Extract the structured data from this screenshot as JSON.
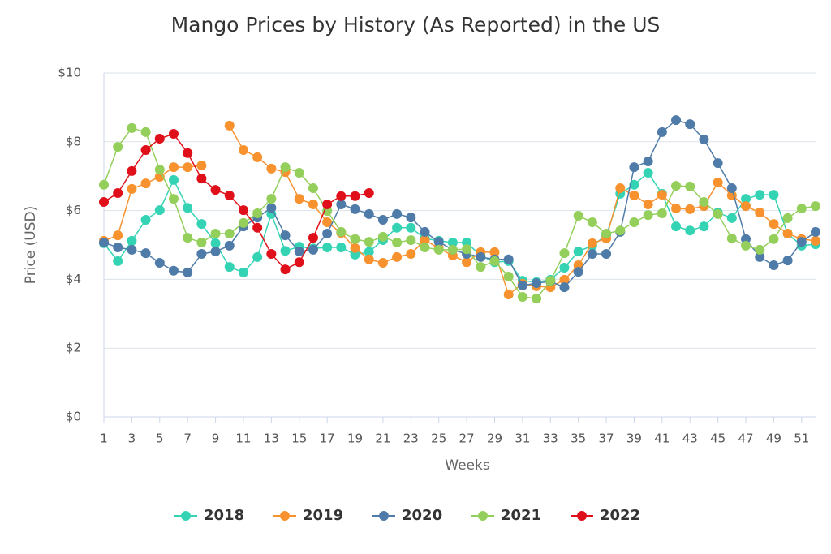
{
  "chart_data": {
    "type": "line",
    "title": "Mango Prices by History (As Reported) in the US",
    "x_label": "Weeks",
    "y_label": "Price (USD)",
    "x": [
      1,
      2,
      3,
      4,
      5,
      6,
      7,
      8,
      9,
      10,
      11,
      12,
      13,
      14,
      15,
      16,
      17,
      18,
      19,
      20,
      21,
      22,
      23,
      24,
      25,
      26,
      27,
      28,
      29,
      30,
      31,
      32,
      33,
      34,
      35,
      36,
      37,
      38,
      39,
      40,
      41,
      42,
      43,
      44,
      45,
      46,
      47,
      48,
      49,
      50,
      51,
      52
    ],
    "xlim": [
      1,
      52
    ],
    "xticks": [
      1,
      3,
      5,
      7,
      9,
      11,
      13,
      15,
      17,
      19,
      21,
      23,
      25,
      27,
      29,
      31,
      33,
      35,
      37,
      39,
      41,
      43,
      45,
      47,
      49,
      51
    ],
    "ylim": [
      0,
      10
    ],
    "yticks": [
      {
        "value": 0,
        "label": "$0"
      },
      {
        "value": 2,
        "label": "$2"
      },
      {
        "value": 4,
        "label": "$4"
      },
      {
        "value": 6,
        "label": "$6"
      },
      {
        "value": 8,
        "label": "$8"
      },
      {
        "value": 10,
        "label": "$10"
      }
    ],
    "grid": true,
    "legend": "bottom",
    "series": [
      {
        "name": "2018",
        "color": "#34d3b4",
        "values": [
          5.05,
          4.53,
          5.12,
          5.73,
          6.01,
          6.89,
          6.08,
          5.61,
          5.05,
          4.36,
          4.2,
          4.65,
          5.9,
          4.83,
          4.95,
          4.9,
          4.93,
          4.93,
          4.72,
          4.8,
          5.14,
          5.5,
          5.5,
          5.19,
          5.12,
          5.07,
          5.07,
          4.69,
          4.5,
          4.53,
          3.96,
          3.92,
          3.99,
          4.34,
          4.81,
          4.98,
          5.28,
          6.49,
          6.75,
          7.1,
          6.49,
          5.54,
          5.42,
          5.54,
          5.94,
          5.78,
          6.34,
          6.46,
          6.46,
          5.33,
          4.98,
          5.02
        ]
      },
      {
        "name": "2019",
        "color": "#f7922f",
        "values": [
          5.12,
          5.28,
          6.63,
          6.79,
          6.98,
          7.26,
          7.26,
          7.31,
          null,
          8.47,
          7.76,
          7.55,
          7.22,
          7.12,
          6.34,
          6.18,
          5.66,
          5.35,
          4.91,
          4.58,
          4.48,
          4.65,
          4.74,
          5.14,
          4.91,
          4.69,
          4.5,
          4.79,
          4.79,
          3.56,
          3.87,
          3.8,
          3.77,
          3.99,
          4.41,
          5.05,
          5.19,
          6.65,
          6.44,
          6.18,
          6.46,
          6.06,
          6.04,
          6.13,
          6.82,
          6.44,
          6.13,
          5.94,
          5.61,
          5.33,
          5.17,
          5.12
        ]
      },
      {
        "name": "2020",
        "color": "#4f7ba8",
        "values": [
          5.07,
          4.93,
          4.86,
          4.76,
          4.48,
          4.25,
          4.2,
          4.74,
          4.81,
          4.98,
          5.54,
          5.8,
          6.08,
          5.28,
          4.81,
          4.86,
          5.33,
          6.18,
          6.04,
          5.9,
          5.73,
          5.9,
          5.8,
          5.38,
          5.09,
          4.86,
          4.74,
          4.65,
          4.58,
          4.58,
          3.82,
          3.89,
          3.94,
          3.77,
          4.22,
          4.74,
          4.74,
          5.38,
          7.26,
          7.43,
          8.28,
          8.63,
          8.51,
          8.07,
          7.38,
          6.65,
          5.17,
          4.65,
          4.41,
          4.55,
          5.09,
          5.38
        ]
      },
      {
        "name": "2021",
        "color": "#93cf5a",
        "values": [
          6.75,
          7.85,
          8.4,
          8.28,
          7.19,
          6.34,
          5.21,
          5.07,
          5.33,
          5.33,
          5.64,
          5.92,
          6.34,
          7.26,
          7.1,
          6.65,
          5.99,
          5.38,
          5.17,
          5.09,
          5.24,
          5.07,
          5.14,
          4.93,
          4.86,
          4.86,
          4.88,
          4.36,
          4.53,
          4.08,
          3.49,
          3.44,
          3.96,
          4.76,
          5.85,
          5.66,
          5.33,
          5.42,
          5.66,
          5.87,
          5.92,
          6.72,
          6.7,
          6.25,
          5.9,
          5.19,
          4.98,
          4.86,
          5.17,
          5.78,
          6.06,
          6.13
        ]
      },
      {
        "name": "2022",
        "color": "#e0101a",
        "values": [
          6.25,
          6.51,
          7.15,
          7.76,
          8.09,
          8.23,
          7.67,
          6.93,
          6.6,
          6.44,
          6.01,
          5.5,
          4.74,
          4.29,
          4.5,
          5.21,
          6.18,
          6.42,
          6.42,
          6.51,
          null,
          null,
          null,
          null,
          null,
          null,
          null,
          null,
          null,
          null,
          null,
          null,
          null,
          null,
          null,
          null,
          null,
          null,
          null,
          null,
          null,
          null,
          null,
          null,
          null,
          null,
          null,
          null,
          null,
          null,
          null,
          null
        ]
      }
    ]
  }
}
